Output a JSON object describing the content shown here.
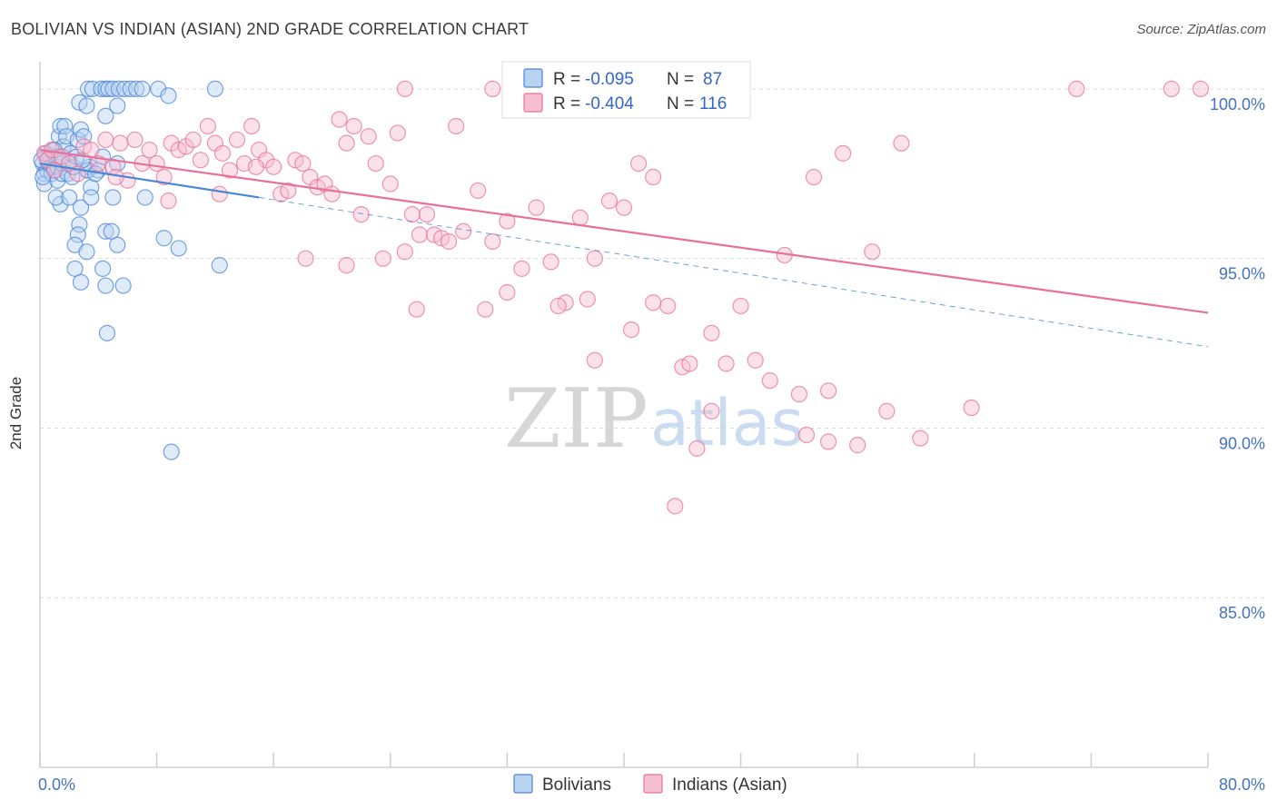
{
  "title": "BOLIVIAN VS INDIAN (ASIAN) 2ND GRADE CORRELATION CHART",
  "source": "Source: ZipAtlas.com",
  "colors": {
    "blue": "#4a86d8",
    "blue_fill": "#b8d2f2",
    "pink": "#e8709a",
    "pink_fill": "#f6bfd1",
    "tick": "#4472c4"
  },
  "chart_data": {
    "type": "scatter",
    "ylabel": "2nd Grade",
    "xlim": [
      0,
      80
    ],
    "ylim": [
      80,
      100.8
    ],
    "x_tick_labels": [
      {
        "value": 0,
        "label": "0.0%"
      },
      {
        "value": 80,
        "label": "80.0%"
      }
    ],
    "y_tick_labels": [
      {
        "value": 100,
        "label": "100.0%"
      },
      {
        "value": 95,
        "label": "95.0%"
      },
      {
        "value": 90,
        "label": "90.0%"
      },
      {
        "value": 85,
        "label": "85.0%"
      }
    ],
    "legend": [
      {
        "series": "Bolivians",
        "r_label": "R =",
        "r_value": "-0.095",
        "n_label": "N =",
        "n_value": "87"
      },
      {
        "series": "Indians (Asian)",
        "r_label": "R =",
        "r_value": "-0.404",
        "n_label": "N =",
        "n_value": "116"
      }
    ],
    "series": [
      {
        "name": "Bolivians",
        "color": "#4a86d8",
        "trend": {
          "x0": 0,
          "y0": 97.8,
          "x1": 15,
          "y1": 96.8,
          "dash_to_x": 80,
          "dash_to_y": 92.4
        },
        "points": [
          [
            0.2,
            97.8
          ],
          [
            0.3,
            97.5
          ],
          [
            0.3,
            97.2
          ],
          [
            0.4,
            98.1
          ],
          [
            0.5,
            97.9
          ],
          [
            0.5,
            97.6
          ],
          [
            0.6,
            97.8
          ],
          [
            0.7,
            98.0
          ],
          [
            0.8,
            97.7
          ],
          [
            0.8,
            97.5
          ],
          [
            0.9,
            98.2
          ],
          [
            1.0,
            97.9
          ],
          [
            1.0,
            97.6
          ],
          [
            1.1,
            98.0
          ],
          [
            1.2,
            97.7
          ],
          [
            1.2,
            97.3
          ],
          [
            1.3,
            98.6
          ],
          [
            1.4,
            98.9
          ],
          [
            1.5,
            97.5
          ],
          [
            1.5,
            97.8
          ],
          [
            1.6,
            98.3
          ],
          [
            1.7,
            98.9
          ],
          [
            1.8,
            98.6
          ],
          [
            1.9,
            97.5
          ],
          [
            2.0,
            97.8
          ],
          [
            2.1,
            98.1
          ],
          [
            2.2,
            97.4
          ],
          [
            2.3,
            97.7
          ],
          [
            2.5,
            98.0
          ],
          [
            2.6,
            98.5
          ],
          [
            2.8,
            98.8
          ],
          [
            3.0,
            98.6
          ],
          [
            3.2,
            97.6
          ],
          [
            3.4,
            97.7
          ],
          [
            3.5,
            97.1
          ],
          [
            1.4,
            96.6
          ],
          [
            1.1,
            96.8
          ],
          [
            2.0,
            96.8
          ],
          [
            2.8,
            96.5
          ],
          [
            2.7,
            96.0
          ],
          [
            2.6,
            95.7
          ],
          [
            2.4,
            95.4
          ],
          [
            3.2,
            95.2
          ],
          [
            2.4,
            94.7
          ],
          [
            2.8,
            94.3
          ],
          [
            4.3,
            94.7
          ],
          [
            4.5,
            94.2
          ],
          [
            5.7,
            94.2
          ],
          [
            4.5,
            95.8
          ],
          [
            4.9,
            95.8
          ],
          [
            5.3,
            95.4
          ],
          [
            5.0,
            96.8
          ],
          [
            3.5,
            96.8
          ],
          [
            3.3,
            97.6
          ],
          [
            5.3,
            97.8
          ],
          [
            4.0,
            97.6
          ],
          [
            4.3,
            98.0
          ],
          [
            3.3,
            100.0
          ],
          [
            3.6,
            100.0
          ],
          [
            4.2,
            100.0
          ],
          [
            4.5,
            100.0
          ],
          [
            4.7,
            100.0
          ],
          [
            5.0,
            100.0
          ],
          [
            5.4,
            100.0
          ],
          [
            5.8,
            100.0
          ],
          [
            6.2,
            100.0
          ],
          [
            6.6,
            100.0
          ],
          [
            7.0,
            100.0
          ],
          [
            8.1,
            100.0
          ],
          [
            12.0,
            100.0
          ],
          [
            2.7,
            99.6
          ],
          [
            3.2,
            99.5
          ],
          [
            4.5,
            99.2
          ],
          [
            5.3,
            99.5
          ],
          [
            8.8,
            99.8
          ],
          [
            7.2,
            96.8
          ],
          [
            8.5,
            95.6
          ],
          [
            9.5,
            95.3
          ],
          [
            12.3,
            94.8
          ],
          [
            4.6,
            92.8
          ],
          [
            9.0,
            89.3
          ],
          [
            0.2,
            97.4
          ],
          [
            0.1,
            97.9
          ],
          [
            1.0,
            98.2
          ],
          [
            1.3,
            98.0
          ],
          [
            2.9,
            97.9
          ],
          [
            3.8,
            97.5
          ]
        ]
      },
      {
        "name": "Indians (Asian)",
        "color": "#e8709a",
        "trend": {
          "x0": 0,
          "y0": 98.2,
          "x1": 80,
          "y1": 93.4
        },
        "points": [
          [
            0.3,
            98.1
          ],
          [
            0.5,
            97.9
          ],
          [
            0.8,
            98.2
          ],
          [
            1.0,
            97.6
          ],
          [
            1.5,
            98.0
          ],
          [
            2.0,
            97.8
          ],
          [
            2.6,
            97.5
          ],
          [
            3.0,
            98.3
          ],
          [
            3.5,
            98.2
          ],
          [
            4.0,
            97.8
          ],
          [
            4.5,
            98.5
          ],
          [
            5.0,
            97.7
          ],
          [
            5.5,
            98.4
          ],
          [
            6.0,
            97.3
          ],
          [
            6.5,
            98.5
          ],
          [
            7.0,
            97.8
          ],
          [
            7.5,
            98.2
          ],
          [
            8.0,
            97.8
          ],
          [
            8.5,
            97.4
          ],
          [
            9.0,
            98.4
          ],
          [
            9.5,
            98.2
          ],
          [
            10.0,
            98.3
          ],
          [
            10.5,
            98.5
          ],
          [
            11.0,
            97.9
          ],
          [
            11.5,
            98.9
          ],
          [
            12.0,
            98.4
          ],
          [
            12.5,
            98.1
          ],
          [
            13.0,
            97.6
          ],
          [
            13.5,
            98.5
          ],
          [
            14.0,
            97.8
          ],
          [
            14.5,
            98.9
          ],
          [
            15.0,
            98.2
          ],
          [
            15.5,
            97.9
          ],
          [
            16.0,
            97.7
          ],
          [
            16.5,
            96.9
          ],
          [
            17.0,
            97.0
          ],
          [
            17.5,
            97.9
          ],
          [
            18.0,
            97.8
          ],
          [
            18.5,
            97.4
          ],
          [
            19.0,
            97.1
          ],
          [
            19.5,
            97.2
          ],
          [
            20.0,
            96.9
          ],
          [
            20.5,
            99.1
          ],
          [
            21.0,
            98.4
          ],
          [
            21.5,
            98.9
          ],
          [
            22.0,
            96.3
          ],
          [
            22.5,
            98.6
          ],
          [
            23.0,
            97.8
          ],
          [
            23.5,
            95.0
          ],
          [
            24.0,
            97.2
          ],
          [
            24.5,
            98.7
          ],
          [
            25.0,
            95.2
          ],
          [
            25.5,
            96.3
          ],
          [
            26.0,
            95.7
          ],
          [
            26.5,
            96.3
          ],
          [
            27.0,
            95.7
          ],
          [
            27.5,
            95.6
          ],
          [
            28.0,
            95.5
          ],
          [
            28.5,
            98.9
          ],
          [
            29.0,
            95.8
          ],
          [
            30.0,
            97.0
          ],
          [
            31.0,
            95.5
          ],
          [
            32.0,
            96.1
          ],
          [
            33.0,
            94.7
          ],
          [
            34.0,
            96.5
          ],
          [
            35.0,
            94.9
          ],
          [
            36.0,
            93.7
          ],
          [
            37.0,
            96.2
          ],
          [
            38.0,
            95.0
          ],
          [
            39.0,
            96.7
          ],
          [
            40.0,
            96.5
          ],
          [
            41.0,
            97.8
          ],
          [
            42.0,
            97.4
          ],
          [
            43.0,
            93.6
          ],
          [
            44.0,
            91.8
          ],
          [
            45.0,
            89.4
          ],
          [
            46.0,
            92.8
          ],
          [
            47.0,
            91.9
          ],
          [
            48.0,
            93.6
          ],
          [
            49.0,
            92.0
          ],
          [
            50.0,
            91.4
          ],
          [
            51.0,
            95.1
          ],
          [
            52.0,
            91.0
          ],
          [
            53.0,
            97.4
          ],
          [
            54.0,
            89.6
          ],
          [
            55.0,
            98.1
          ],
          [
            56.0,
            89.5
          ],
          [
            57.0,
            95.2
          ],
          [
            58.0,
            90.5
          ],
          [
            59.0,
            98.4
          ],
          [
            25.0,
            100.0
          ],
          [
            31.0,
            100.0
          ],
          [
            71.0,
            100.0
          ],
          [
            79.5,
            100.0
          ],
          [
            77.5,
            100.0
          ],
          [
            5.2,
            97.4
          ],
          [
            8.8,
            96.7
          ],
          [
            12.3,
            96.9
          ],
          [
            14.8,
            97.7
          ],
          [
            18.2,
            95.0
          ],
          [
            21.0,
            94.8
          ],
          [
            25.8,
            93.5
          ],
          [
            30.5,
            93.5
          ],
          [
            32.0,
            94.0
          ],
          [
            35.5,
            93.6
          ],
          [
            37.5,
            93.8
          ],
          [
            40.5,
            92.9
          ],
          [
            44.5,
            91.9
          ],
          [
            43.5,
            87.7
          ],
          [
            46.0,
            90.5
          ],
          [
            52.5,
            89.8
          ],
          [
            60.3,
            89.7
          ],
          [
            63.8,
            90.6
          ],
          [
            54.0,
            91.1
          ],
          [
            38.0,
            92.0
          ],
          [
            42.0,
            93.7
          ]
        ]
      }
    ]
  }
}
